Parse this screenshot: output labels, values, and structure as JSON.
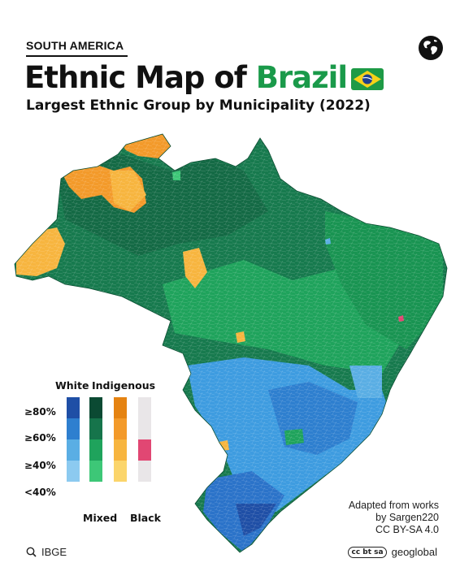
{
  "header": {
    "kicker": "SOUTH AMERICA",
    "title_prefix": "Ethnic Map of ",
    "title_highlight": "Brazil",
    "subtitle": "Largest Ethnic Group by Municipality (2022)"
  },
  "legend": {
    "headers": {
      "white": "White",
      "indigenous": "Indigenous",
      "mixed": "Mixed",
      "black": "Black"
    },
    "rows": [
      "≥80%",
      "≥60%",
      "≥40%",
      "<40%"
    ],
    "colors": {
      "white": [
        "#1f4fa6",
        "#2e7fcf",
        "#5aaee4",
        "#8ccaf0"
      ],
      "mixed": [
        "#0b4a33",
        "#16744b",
        "#1fa35c",
        "#3dc777"
      ],
      "indigenous": [
        "#e58312",
        "#f39a2a",
        "#f7b53f",
        "#fbd56b"
      ],
      "black": [
        "#e9e6e8",
        "#e9e6e8",
        "#e14773",
        "#e9e6e8"
      ]
    }
  },
  "credit": {
    "line1": "Adapted from works",
    "line2": "by Sargen220",
    "line3": "CC BY-SA 4.0"
  },
  "footer": {
    "source": "IBGE",
    "brand": "geoglobal",
    "cc_mark": "cc bt sa"
  },
  "icons": {
    "globe": "globe-icon",
    "flag": "brazil-flag-icon",
    "search": "search-icon",
    "cc": "creative-commons-icon"
  }
}
